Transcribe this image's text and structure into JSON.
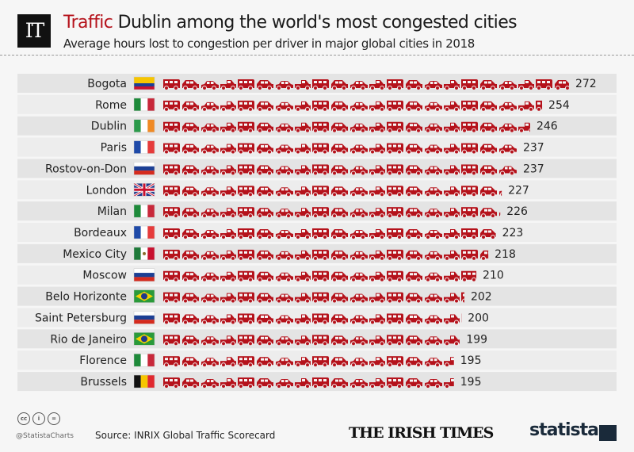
{
  "header": {
    "logo": "IT",
    "title_keyword": "Traffic",
    "title": "Dublin among the world's most congested cities",
    "subtitle": "Average hours lost to congestion per driver in major global cities in 2018"
  },
  "chart_data": {
    "type": "bar",
    "orientation": "horizontal",
    "pictogram": "car-icons",
    "categories": [
      "Bogota",
      "Rome",
      "Dublin",
      "Paris",
      "Rostov-on-Don",
      "London",
      "Milan",
      "Bordeaux",
      "Mexico City",
      "Moscow",
      "Belo Horizonte",
      "Saint Petersburg",
      "Rio de Janeiro",
      "Florence",
      "Brussels"
    ],
    "flags": [
      "colombia",
      "italy",
      "ireland",
      "france",
      "russia",
      "uk",
      "italy",
      "france",
      "mexico",
      "russia",
      "brazil",
      "russia",
      "brazil",
      "italy",
      "belgium"
    ],
    "values": [
      272,
      254,
      246,
      237,
      237,
      227,
      226,
      223,
      218,
      210,
      202,
      200,
      199,
      195,
      195
    ],
    "xlim": [
      0,
      280
    ],
    "grid": false,
    "bar_color": "#b5121b"
  },
  "footer": {
    "license_icons": [
      "cc-icon",
      "by-icon",
      "nd-icon"
    ],
    "handle": "@StatistaCharts",
    "source": "Source: INRIX Global Traffic Scorecard",
    "publisher": "THE IRISH TIMES",
    "brand": "statista"
  }
}
